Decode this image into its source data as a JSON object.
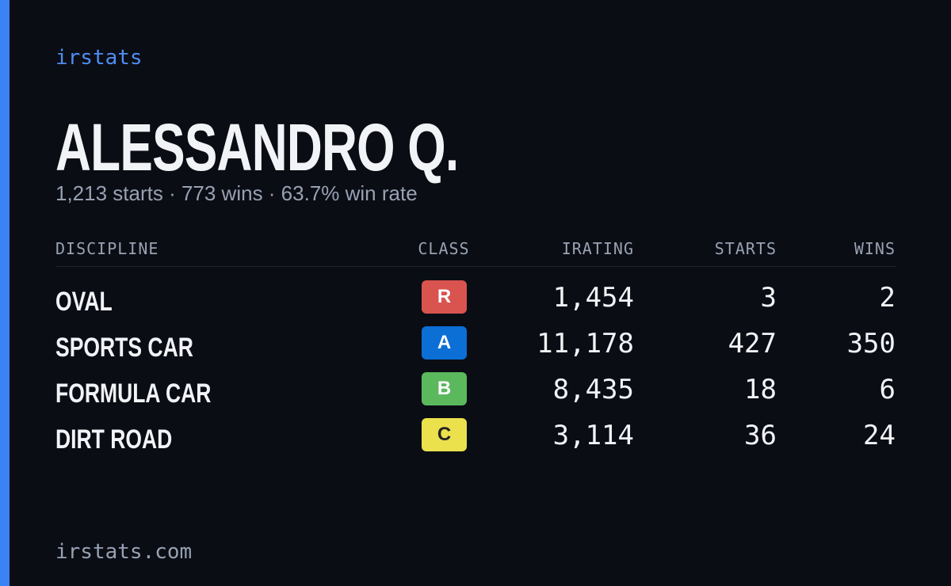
{
  "brand": "irstats",
  "driver": {
    "name": "ALESSANDRO Q.",
    "summary": "1,213 starts · 773 wins · 63.7% win rate"
  },
  "table": {
    "headers": [
      "DISCIPLINE",
      "CLASS",
      "IRATING",
      "STARTS",
      "WINS"
    ],
    "rows": [
      {
        "discipline": "OVAL",
        "class": "R",
        "class_color": "#d9534f",
        "irating": "1,454",
        "starts": "3",
        "wins": "2"
      },
      {
        "discipline": "SPORTS CAR",
        "class": "A",
        "class_color": "#0b6fd6",
        "irating": "11,178",
        "starts": "427",
        "wins": "350"
      },
      {
        "discipline": "FORMULA CAR",
        "class": "B",
        "class_color": "#5cb85c",
        "irating": "8,435",
        "starts": "18",
        "wins": "6"
      },
      {
        "discipline": "DIRT ROAD",
        "class": "C",
        "class_color": "#ebe14d",
        "irating": "3,114",
        "starts": "36",
        "wins": "24"
      }
    ]
  },
  "footer": "irstats.com"
}
